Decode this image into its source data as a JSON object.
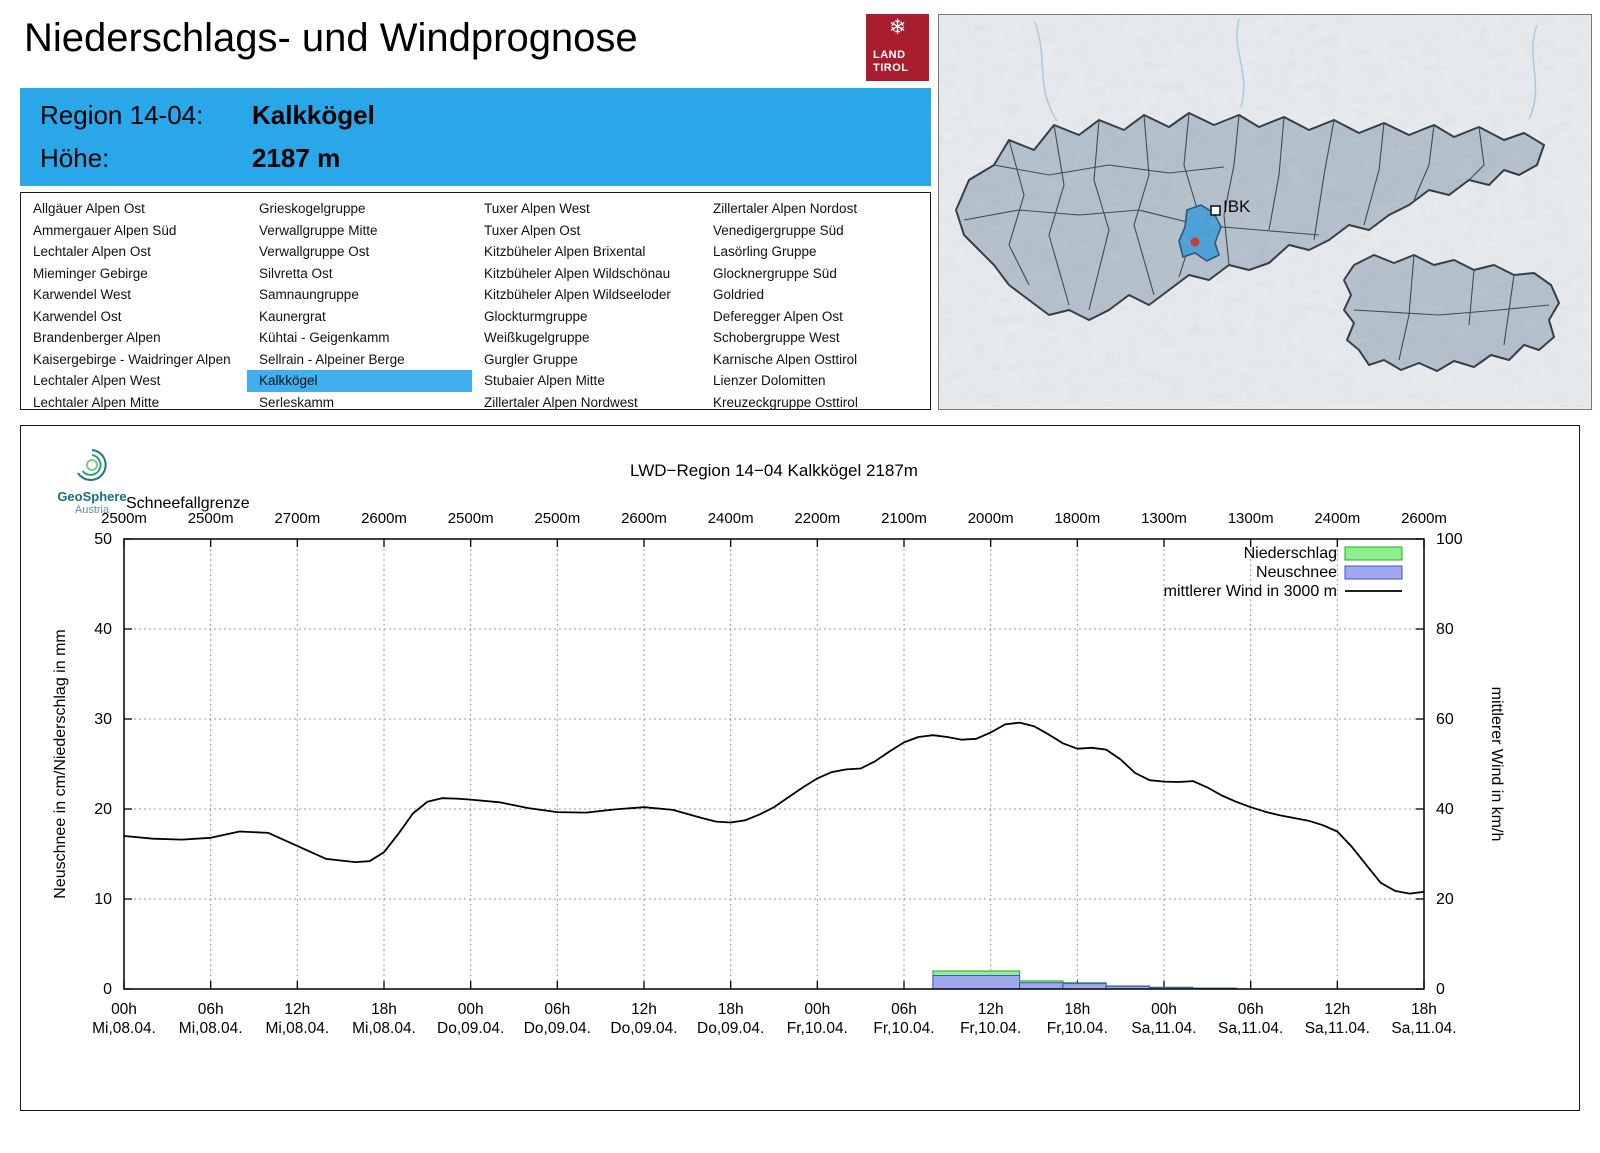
{
  "page": {
    "title": "Niederschlags- und Windprognose"
  },
  "logo": {
    "line1": "LAND",
    "line2": "TIROL"
  },
  "geosphere": {
    "name": "GeoSphere",
    "country": "Austria"
  },
  "map": {
    "city_label": "IBK"
  },
  "region_header": {
    "region_label": "Region 14-04:",
    "region_value": "Kalkkögel",
    "altitude_label": "Höhe:",
    "altitude_value": "2187 m"
  },
  "region_list": {
    "selected": "Kalkkögel",
    "columns": [
      [
        "Allgäuer Alpen Ost",
        "Ammergauer Alpen Süd",
        "Lechtaler Alpen Ost",
        "Mieminger Gebirge",
        "Karwendel West",
        "Karwendel Ost",
        "Brandenberger Alpen",
        "Kaisergebirge - Waidringer Alpen",
        "Lechtaler Alpen West",
        "Lechtaler Alpen Mitte"
      ],
      [
        "Grieskogelgruppe",
        "Verwallgruppe Mitte",
        "Verwallgruppe Ost",
        "Silvretta Ost",
        "Samnaungruppe",
        "Kaunergrat",
        "Kühtai - Geigenkamm",
        "Sellrain - Alpeiner Berge",
        "Kalkkögel",
        "Serleskamm"
      ],
      [
        "Tuxer Alpen West",
        "Tuxer Alpen Ost",
        "Kitzbüheler Alpen Brixental",
        "Kitzbüheler Alpen Wildschönau",
        "Kitzbüheler Alpen Wildseeloder",
        "Glockturmgruppe",
        "Weißkugelgruppe",
        "Gurgler Gruppe",
        "Stubaier Alpen Mitte",
        "Zillertaler Alpen Nordwest"
      ],
      [
        "Zillertaler Alpen Nordost",
        "Venedigergruppe Süd",
        "Lasörling Gruppe",
        "Glocknergruppe Süd",
        "Goldried",
        "Deferegger Alpen Ost",
        "Schobergruppe West",
        "Karnische Alpen Osttirol",
        "Lienzer Dolomitten",
        "Kreuzeckgruppe Osttirol"
      ]
    ]
  },
  "chart_data": {
    "type": "line",
    "title": "LWD−Region 14−04 Kalkkögel 2187m",
    "snowline_label": "Schneefallgrenze",
    "snowline_values": [
      "2500m",
      "2500m",
      "2700m",
      "2600m",
      "2500m",
      "2500m",
      "2600m",
      "2400m",
      "2200m",
      "2100m",
      "2000m",
      "1800m",
      "1300m",
      "1300m",
      "2400m",
      "2600m"
    ],
    "ylabel_left": "Neuschnee in cm/Niederschlag in mm",
    "ylabel_right": "mittlerer Wind in km/h",
    "ylim_left": [
      0,
      50
    ],
    "ylim_right": [
      0,
      100
    ],
    "x_hours_max": 90,
    "grid": true,
    "legend_position": "top-right",
    "x_ticks": [
      {
        "hour": "00h",
        "date": "Mi,08.04."
      },
      {
        "hour": "06h",
        "date": "Mi,08.04."
      },
      {
        "hour": "12h",
        "date": "Mi,08.04."
      },
      {
        "hour": "18h",
        "date": "Mi,08.04."
      },
      {
        "hour": "00h",
        "date": "Do,09.04."
      },
      {
        "hour": "06h",
        "date": "Do,09.04."
      },
      {
        "hour": "12h",
        "date": "Do,09.04."
      },
      {
        "hour": "18h",
        "date": "Do,09.04."
      },
      {
        "hour": "00h",
        "date": "Fr,10.04."
      },
      {
        "hour": "06h",
        "date": "Fr,10.04."
      },
      {
        "hour": "12h",
        "date": "Fr,10.04."
      },
      {
        "hour": "18h",
        "date": "Fr,10.04."
      },
      {
        "hour": "00h",
        "date": "Sa,11.04."
      },
      {
        "hour": "06h",
        "date": "Sa,11.04."
      },
      {
        "hour": "12h",
        "date": "Sa,11.04."
      },
      {
        "hour": "18h",
        "date": "Sa,11.04."
      }
    ],
    "legend": [
      {
        "label": "Niederschlag",
        "type": "box",
        "fill": "#8df08d",
        "stroke": "#1fae1f"
      },
      {
        "label": "Neuschnee",
        "type": "box",
        "fill": "#a0a8f0",
        "stroke": "#4450c8"
      },
      {
        "label": "mittlerer Wind in 3000 m",
        "type": "line",
        "stroke": "#000000"
      }
    ],
    "colors": {
      "precip_fill": "#8df08d",
      "precip_stroke": "#1fae1f",
      "snow_fill": "#a0a8f0",
      "snow_stroke": "#4450c8",
      "wind": "#000000"
    },
    "wind_series": {
      "name": "mittlerer Wind in 3000 m",
      "axis": "right",
      "unit": "km/h",
      "points": [
        [
          0,
          34
        ],
        [
          2,
          33.4
        ],
        [
          4,
          33.2
        ],
        [
          6,
          33.6
        ],
        [
          8,
          35
        ],
        [
          10,
          34.7
        ],
        [
          12,
          31.8
        ],
        [
          14,
          28.9
        ],
        [
          16,
          28.2
        ],
        [
          17,
          28.4
        ],
        [
          18,
          30.4
        ],
        [
          19,
          34.5
        ],
        [
          20,
          39
        ],
        [
          21,
          41.6
        ],
        [
          22,
          42.4
        ],
        [
          23,
          42.3
        ],
        [
          24,
          42.1
        ],
        [
          26,
          41.5
        ],
        [
          28,
          40.2
        ],
        [
          30,
          39.3
        ],
        [
          32,
          39.2
        ],
        [
          34,
          39.9
        ],
        [
          36,
          40.4
        ],
        [
          38,
          39.8
        ],
        [
          40,
          38
        ],
        [
          41,
          37.2
        ],
        [
          42,
          37
        ],
        [
          43,
          37.5
        ],
        [
          44,
          38.8
        ],
        [
          45,
          40.4
        ],
        [
          46,
          42.6
        ],
        [
          47,
          44.8
        ],
        [
          48,
          46.8
        ],
        [
          49,
          48.2
        ],
        [
          50,
          48.8
        ],
        [
          51,
          49
        ],
        [
          52,
          50.6
        ],
        [
          53,
          52.8
        ],
        [
          54,
          54.8
        ],
        [
          55,
          56
        ],
        [
          56,
          56.4
        ],
        [
          57,
          56
        ],
        [
          58,
          55.4
        ],
        [
          59,
          55.6
        ],
        [
          60,
          57
        ],
        [
          61,
          58.8
        ],
        [
          62,
          59.2
        ],
        [
          63,
          58.4
        ],
        [
          64,
          56.6
        ],
        [
          65,
          54.6
        ],
        [
          66,
          53.4
        ],
        [
          67,
          53.6
        ],
        [
          68,
          53.2
        ],
        [
          69,
          51
        ],
        [
          70,
          48
        ],
        [
          71,
          46.4
        ],
        [
          72,
          46.1
        ],
        [
          73,
          46
        ],
        [
          74,
          46.2
        ],
        [
          75,
          44.8
        ],
        [
          76,
          43
        ],
        [
          77,
          41.6
        ],
        [
          78,
          40.4
        ],
        [
          79,
          39.4
        ],
        [
          80,
          38.6
        ],
        [
          81,
          38
        ],
        [
          82,
          37.4
        ],
        [
          83,
          36.4
        ],
        [
          84,
          35
        ],
        [
          85,
          31.6
        ],
        [
          86,
          27.6
        ],
        [
          87,
          23.6
        ],
        [
          88,
          21.8
        ],
        [
          89,
          21.2
        ],
        [
          90,
          21.6
        ]
      ]
    },
    "bars": [
      {
        "t0": 56,
        "t1": 62,
        "precip_mm": 2.0,
        "neuschnee_cm": 1.5
      },
      {
        "t0": 62,
        "t1": 65,
        "precip_mm": 0.9,
        "neuschnee_cm": 0.7
      },
      {
        "t0": 65,
        "t1": 68,
        "precip_mm": 0.7,
        "neuschnee_cm": 0.6
      },
      {
        "t0": 68,
        "t1": 71,
        "precip_mm": 0.35,
        "neuschnee_cm": 0.3
      },
      {
        "t0": 71,
        "t1": 74,
        "precip_mm": 0.2,
        "neuschnee_cm": 0.15
      },
      {
        "t0": 74,
        "t1": 77,
        "precip_mm": 0.1,
        "neuschnee_cm": 0.08
      }
    ]
  }
}
